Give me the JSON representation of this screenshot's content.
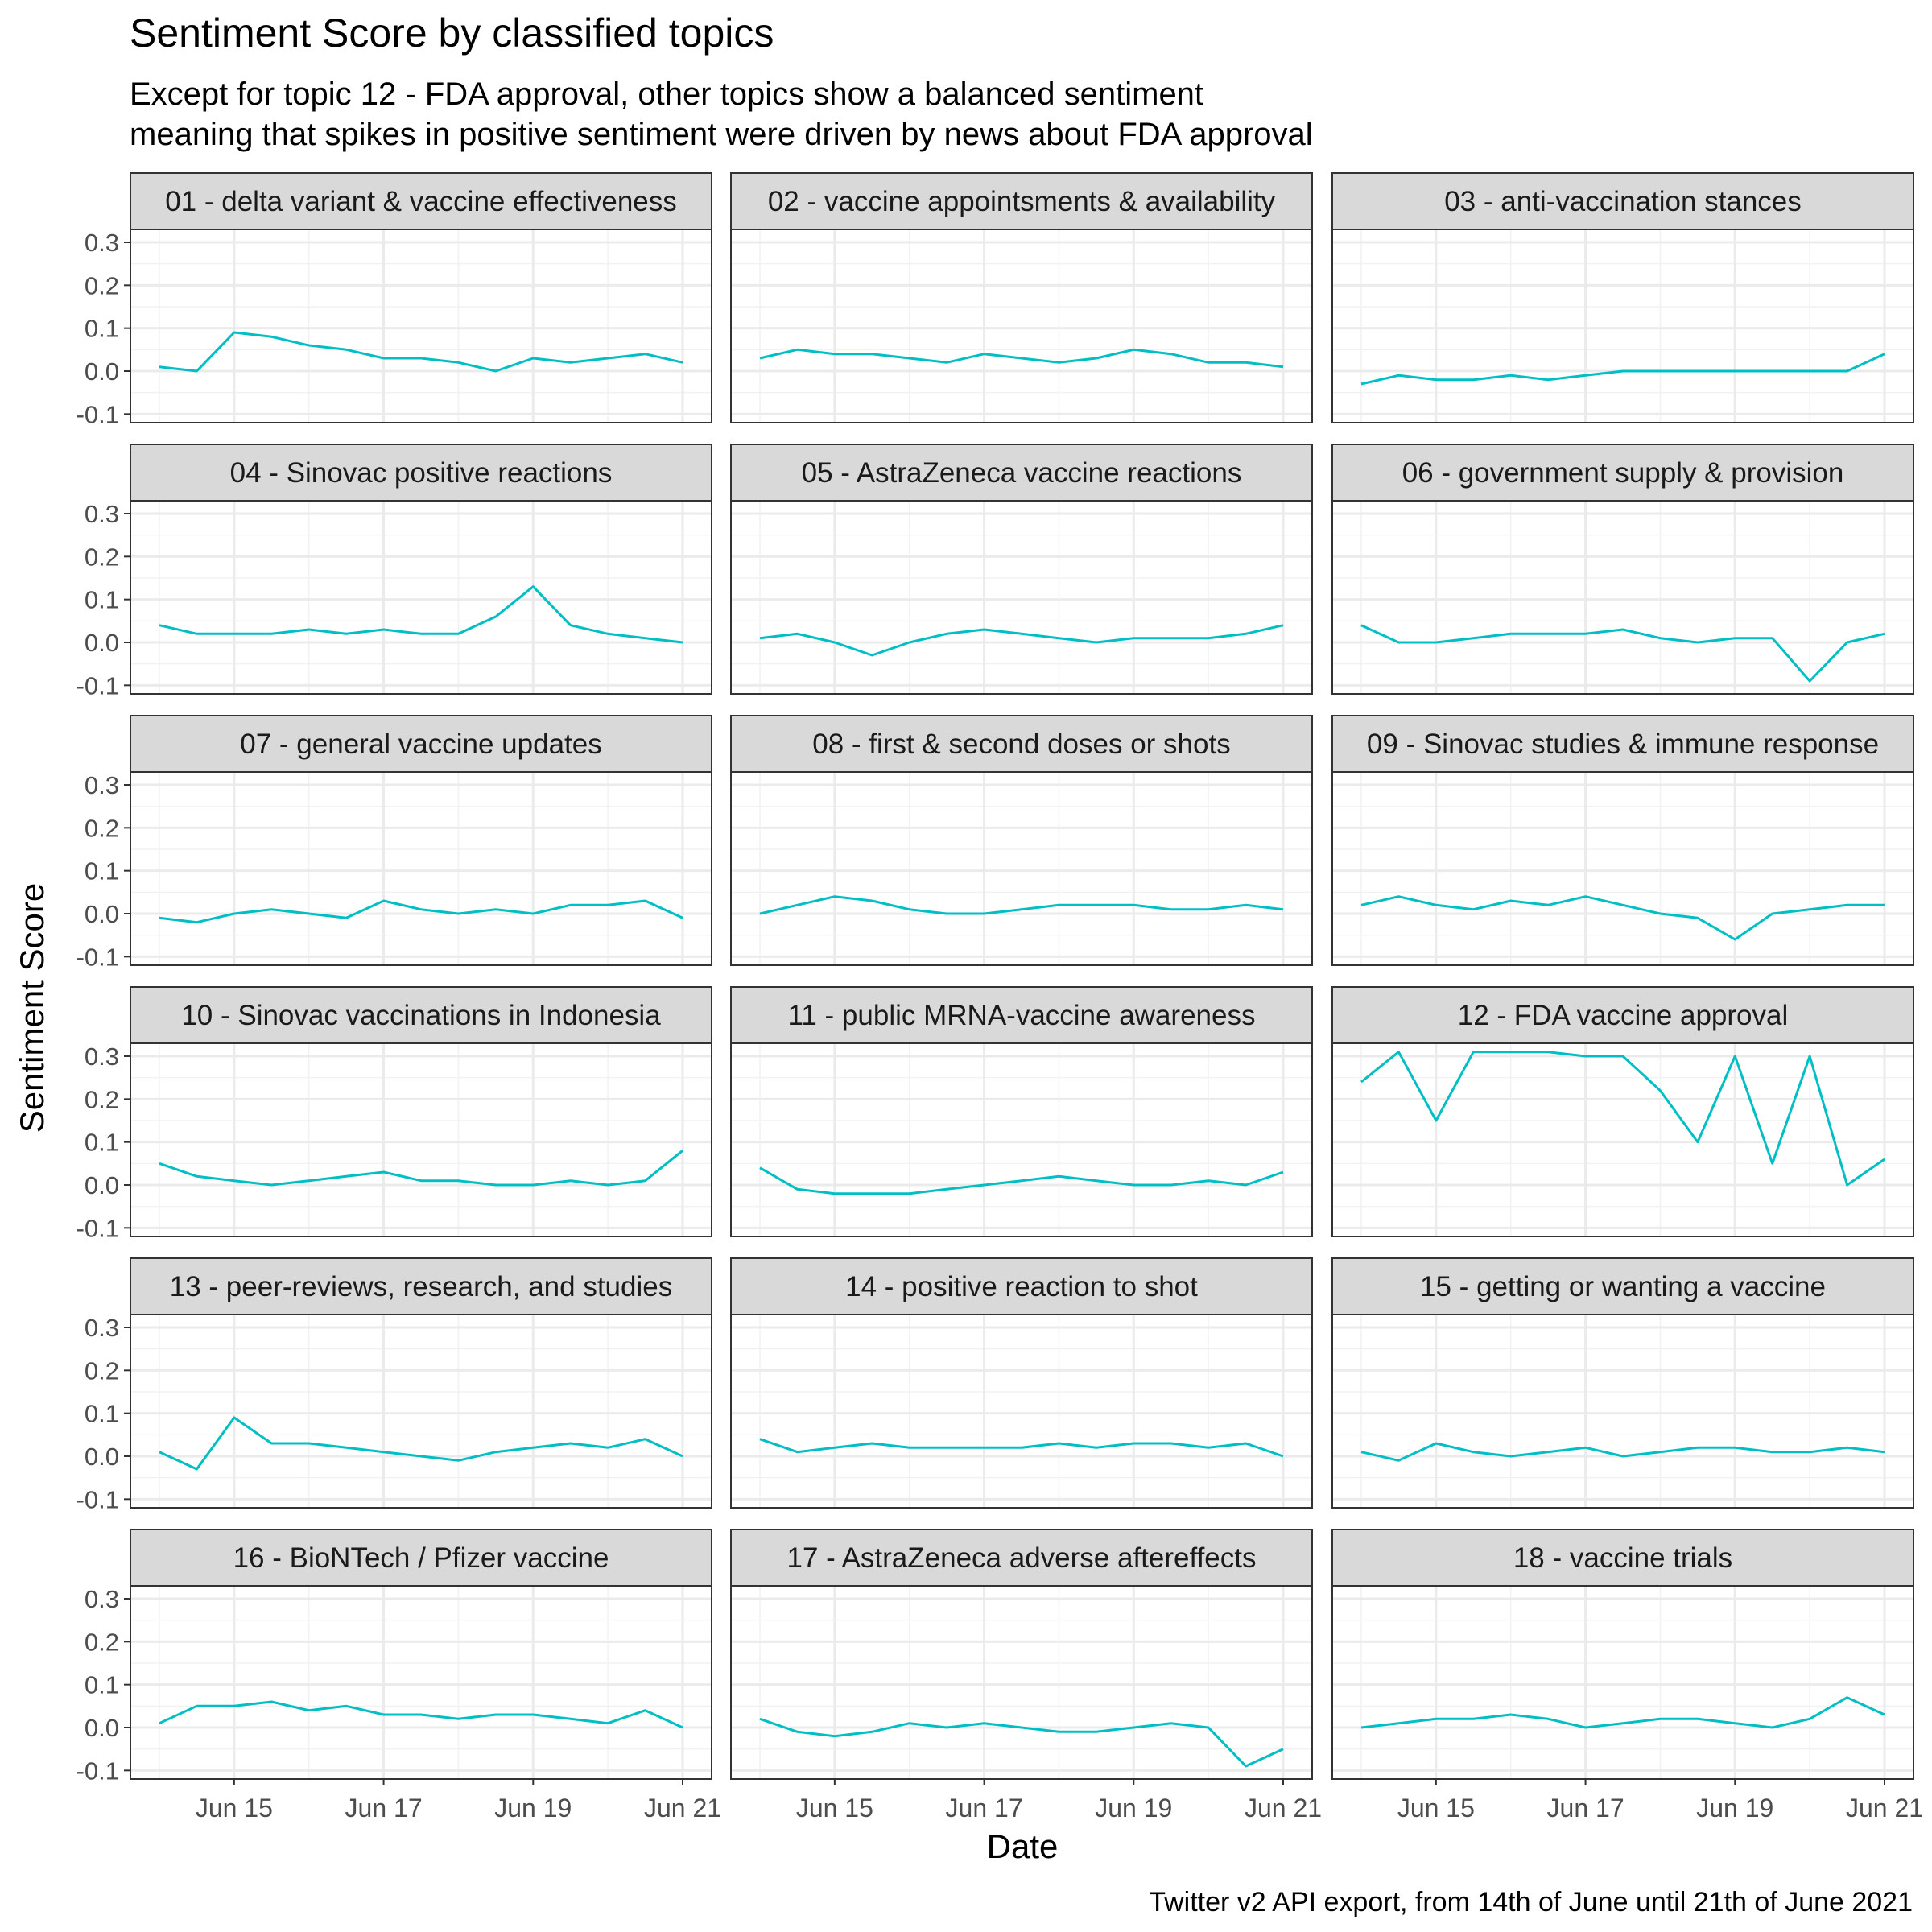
{
  "chart_data": {
    "type": "line",
    "title": "Sentiment Score by classified topics",
    "subtitle_lines": [
      "Except for topic 12 - FDA approval, other topics show a balanced sentiment",
      "meaning that spikes in positive sentiment were driven by news about FDA approval"
    ],
    "xlabel": "Date",
    "ylabel": "Sentiment Score",
    "caption": "Twitter v2 API export, from 14th of June until 21th of June 2021",
    "x_range": [
      "2021-06-14",
      "2021-06-21"
    ],
    "x_ticks": [
      {
        "date": "2021-06-15",
        "label": "Jun 15"
      },
      {
        "date": "2021-06-17",
        "label": "Jun 17"
      },
      {
        "date": "2021-06-19",
        "label": "Jun 19"
      },
      {
        "date": "2021-06-21",
        "label": "Jun 21"
      }
    ],
    "y_ticks": [
      -0.1,
      0.0,
      0.1,
      0.2,
      0.3
    ],
    "y_tick_labels": [
      "-0.1",
      "0.0",
      "0.1",
      "0.2",
      "0.3"
    ],
    "ylim": [
      -0.12,
      0.33
    ],
    "grid": true,
    "line_color": "#00BFC4",
    "panels": [
      {
        "label": "01 - delta variant & vaccine effectiveness",
        "x": [
          "2021-06-14",
          "2021-06-14 12:00",
          "2021-06-15",
          "2021-06-15 12:00",
          "2021-06-16",
          "2021-06-16 12:00",
          "2021-06-17",
          "2021-06-17 12:00",
          "2021-06-18",
          "2021-06-18 12:00",
          "2021-06-19",
          "2021-06-19 12:00",
          "2021-06-20",
          "2021-06-20 12:00",
          "2021-06-21"
        ],
        "y": [
          0.01,
          0.0,
          0.09,
          0.08,
          0.06,
          0.05,
          0.03,
          0.03,
          0.02,
          0.0,
          0.03,
          0.02,
          0.03,
          0.04,
          0.02
        ]
      },
      {
        "label": "02 - vaccine appointsments & availability",
        "x": [
          "2021-06-14",
          "2021-06-14 12:00",
          "2021-06-15",
          "2021-06-15 12:00",
          "2021-06-16",
          "2021-06-16 12:00",
          "2021-06-17",
          "2021-06-17 12:00",
          "2021-06-18",
          "2021-06-18 12:00",
          "2021-06-19",
          "2021-06-19 12:00",
          "2021-06-20",
          "2021-06-20 12:00",
          "2021-06-21"
        ],
        "y": [
          0.03,
          0.05,
          0.04,
          0.04,
          0.03,
          0.02,
          0.04,
          0.03,
          0.02,
          0.03,
          0.05,
          0.04,
          0.02,
          0.02,
          0.01
        ]
      },
      {
        "label": "03 - anti-vaccination stances",
        "x": [
          "2021-06-14",
          "2021-06-14 12:00",
          "2021-06-15",
          "2021-06-15 12:00",
          "2021-06-16",
          "2021-06-16 12:00",
          "2021-06-17",
          "2021-06-17 12:00",
          "2021-06-18",
          "2021-06-18 12:00",
          "2021-06-19",
          "2021-06-19 12:00",
          "2021-06-20",
          "2021-06-20 12:00",
          "2021-06-21"
        ],
        "y": [
          -0.03,
          -0.01,
          -0.02,
          -0.02,
          -0.01,
          -0.02,
          -0.01,
          0.0,
          0.0,
          0.0,
          0.0,
          0.0,
          0.0,
          0.0,
          0.04
        ]
      },
      {
        "label": "04 - Sinovac positive reactions",
        "x": [
          "2021-06-14",
          "2021-06-14 12:00",
          "2021-06-15",
          "2021-06-15 12:00",
          "2021-06-16",
          "2021-06-16 12:00",
          "2021-06-17",
          "2021-06-17 12:00",
          "2021-06-18",
          "2021-06-18 12:00",
          "2021-06-19",
          "2021-06-19 12:00",
          "2021-06-20",
          "2021-06-20 12:00",
          "2021-06-21"
        ],
        "y": [
          0.04,
          0.02,
          0.02,
          0.02,
          0.03,
          0.02,
          0.03,
          0.02,
          0.02,
          0.06,
          0.13,
          0.04,
          0.02,
          0.01,
          0.0
        ]
      },
      {
        "label": "05 - AstraZeneca vaccine reactions",
        "x": [
          "2021-06-14",
          "2021-06-14 12:00",
          "2021-06-15",
          "2021-06-15 12:00",
          "2021-06-16",
          "2021-06-16 12:00",
          "2021-06-17",
          "2021-06-17 12:00",
          "2021-06-18",
          "2021-06-18 12:00",
          "2021-06-19",
          "2021-06-19 12:00",
          "2021-06-20",
          "2021-06-20 12:00",
          "2021-06-21"
        ],
        "y": [
          0.01,
          0.02,
          0.0,
          -0.03,
          0.0,
          0.02,
          0.03,
          0.02,
          0.01,
          0.0,
          0.01,
          0.01,
          0.01,
          0.02,
          0.04
        ]
      },
      {
        "label": "06 - government supply & provision",
        "x": [
          "2021-06-14",
          "2021-06-14 12:00",
          "2021-06-15",
          "2021-06-15 12:00",
          "2021-06-16",
          "2021-06-16 12:00",
          "2021-06-17",
          "2021-06-17 12:00",
          "2021-06-18",
          "2021-06-18 12:00",
          "2021-06-19",
          "2021-06-19 12:00",
          "2021-06-20",
          "2021-06-20 12:00",
          "2021-06-21"
        ],
        "y": [
          0.04,
          0.0,
          0.0,
          0.01,
          0.02,
          0.02,
          0.02,
          0.03,
          0.01,
          0.0,
          0.01,
          0.01,
          -0.09,
          0.0,
          0.02
        ]
      },
      {
        "label": "07 - general vaccine updates",
        "x": [
          "2021-06-14",
          "2021-06-14 12:00",
          "2021-06-15",
          "2021-06-15 12:00",
          "2021-06-16",
          "2021-06-16 12:00",
          "2021-06-17",
          "2021-06-17 12:00",
          "2021-06-18",
          "2021-06-18 12:00",
          "2021-06-19",
          "2021-06-19 12:00",
          "2021-06-20",
          "2021-06-20 12:00",
          "2021-06-21"
        ],
        "y": [
          -0.01,
          -0.02,
          0.0,
          0.01,
          0.0,
          -0.01,
          0.03,
          0.01,
          0.0,
          0.01,
          0.0,
          0.02,
          0.02,
          0.03,
          -0.01
        ]
      },
      {
        "label": "08 - first & second doses or shots",
        "x": [
          "2021-06-14",
          "2021-06-14 12:00",
          "2021-06-15",
          "2021-06-15 12:00",
          "2021-06-16",
          "2021-06-16 12:00",
          "2021-06-17",
          "2021-06-17 12:00",
          "2021-06-18",
          "2021-06-18 12:00",
          "2021-06-19",
          "2021-06-19 12:00",
          "2021-06-20",
          "2021-06-20 12:00",
          "2021-06-21"
        ],
        "y": [
          0.0,
          0.02,
          0.04,
          0.03,
          0.01,
          0.0,
          0.0,
          0.01,
          0.02,
          0.02,
          0.02,
          0.01,
          0.01,
          0.02,
          0.01
        ]
      },
      {
        "label": "09 - Sinovac studies & immune response",
        "x": [
          "2021-06-14",
          "2021-06-14 12:00",
          "2021-06-15",
          "2021-06-15 12:00",
          "2021-06-16",
          "2021-06-16 12:00",
          "2021-06-17",
          "2021-06-17 12:00",
          "2021-06-18",
          "2021-06-18 12:00",
          "2021-06-19",
          "2021-06-19 12:00",
          "2021-06-20",
          "2021-06-20 12:00",
          "2021-06-21"
        ],
        "y": [
          0.02,
          0.04,
          0.02,
          0.01,
          0.03,
          0.02,
          0.04,
          0.02,
          0.0,
          -0.01,
          -0.06,
          0.0,
          0.01,
          0.02,
          0.02
        ]
      },
      {
        "label": "10 - Sinovac vaccinations in Indonesia",
        "x": [
          "2021-06-14",
          "2021-06-14 12:00",
          "2021-06-15",
          "2021-06-15 12:00",
          "2021-06-16",
          "2021-06-16 12:00",
          "2021-06-17",
          "2021-06-17 12:00",
          "2021-06-18",
          "2021-06-18 12:00",
          "2021-06-19",
          "2021-06-19 12:00",
          "2021-06-20",
          "2021-06-20 12:00",
          "2021-06-21"
        ],
        "y": [
          0.05,
          0.02,
          0.01,
          0.0,
          0.01,
          0.02,
          0.03,
          0.01,
          0.01,
          0.0,
          0.0,
          0.01,
          0.0,
          0.01,
          0.08
        ]
      },
      {
        "label": "11 - public MRNA-vaccine awareness",
        "x": [
          "2021-06-14",
          "2021-06-14 12:00",
          "2021-06-15",
          "2021-06-15 12:00",
          "2021-06-16",
          "2021-06-16 12:00",
          "2021-06-17",
          "2021-06-17 12:00",
          "2021-06-18",
          "2021-06-18 12:00",
          "2021-06-19",
          "2021-06-19 12:00",
          "2021-06-20",
          "2021-06-20 12:00",
          "2021-06-21"
        ],
        "y": [
          0.04,
          -0.01,
          -0.02,
          -0.02,
          -0.02,
          -0.01,
          0.0,
          0.01,
          0.02,
          0.01,
          0.0,
          0.0,
          0.01,
          0.0,
          0.03
        ]
      },
      {
        "label": "12 - FDA vaccine approval",
        "x": [
          "2021-06-14",
          "2021-06-14 12:00",
          "2021-06-15",
          "2021-06-15 12:00",
          "2021-06-16",
          "2021-06-16 12:00",
          "2021-06-17",
          "2021-06-17 12:00",
          "2021-06-18",
          "2021-06-18 12:00",
          "2021-06-19",
          "2021-06-19 12:00",
          "2021-06-20",
          "2021-06-20 12:00",
          "2021-06-21"
        ],
        "y": [
          0.24,
          0.31,
          0.15,
          0.31,
          0.31,
          0.31,
          0.3,
          0.3,
          0.22,
          0.1,
          0.3,
          0.05,
          0.3,
          0.0,
          0.06
        ]
      },
      {
        "label": "13 - peer-reviews, research, and studies",
        "x": [
          "2021-06-14",
          "2021-06-14 12:00",
          "2021-06-15",
          "2021-06-15 12:00",
          "2021-06-16",
          "2021-06-16 12:00",
          "2021-06-17",
          "2021-06-17 12:00",
          "2021-06-18",
          "2021-06-18 12:00",
          "2021-06-19",
          "2021-06-19 12:00",
          "2021-06-20",
          "2021-06-20 12:00",
          "2021-06-21"
        ],
        "y": [
          0.01,
          -0.03,
          0.09,
          0.03,
          0.03,
          0.02,
          0.01,
          0.0,
          -0.01,
          0.01,
          0.02,
          0.03,
          0.02,
          0.04,
          0.0
        ]
      },
      {
        "label": "14 - positive reaction to shot",
        "x": [
          "2021-06-14",
          "2021-06-14 12:00",
          "2021-06-15",
          "2021-06-15 12:00",
          "2021-06-16",
          "2021-06-16 12:00",
          "2021-06-17",
          "2021-06-17 12:00",
          "2021-06-18",
          "2021-06-18 12:00",
          "2021-06-19",
          "2021-06-19 12:00",
          "2021-06-20",
          "2021-06-20 12:00",
          "2021-06-21"
        ],
        "y": [
          0.04,
          0.01,
          0.02,
          0.03,
          0.02,
          0.02,
          0.02,
          0.02,
          0.03,
          0.02,
          0.03,
          0.03,
          0.02,
          0.03,
          0.0
        ]
      },
      {
        "label": "15 - getting or wanting a vaccine",
        "x": [
          "2021-06-14",
          "2021-06-14 12:00",
          "2021-06-15",
          "2021-06-15 12:00",
          "2021-06-16",
          "2021-06-16 12:00",
          "2021-06-17",
          "2021-06-17 12:00",
          "2021-06-18",
          "2021-06-18 12:00",
          "2021-06-19",
          "2021-06-19 12:00",
          "2021-06-20",
          "2021-06-20 12:00",
          "2021-06-21"
        ],
        "y": [
          0.01,
          -0.01,
          0.03,
          0.01,
          0.0,
          0.01,
          0.02,
          0.0,
          0.01,
          0.02,
          0.02,
          0.01,
          0.01,
          0.02,
          0.01
        ]
      },
      {
        "label": "16 - BioNTech / Pfizer vaccine",
        "x": [
          "2021-06-14",
          "2021-06-14 12:00",
          "2021-06-15",
          "2021-06-15 12:00",
          "2021-06-16",
          "2021-06-16 12:00",
          "2021-06-17",
          "2021-06-17 12:00",
          "2021-06-18",
          "2021-06-18 12:00",
          "2021-06-19",
          "2021-06-19 12:00",
          "2021-06-20",
          "2021-06-20 12:00",
          "2021-06-21"
        ],
        "y": [
          0.01,
          0.05,
          0.05,
          0.06,
          0.04,
          0.05,
          0.03,
          0.03,
          0.02,
          0.03,
          0.03,
          0.02,
          0.01,
          0.04,
          0.0
        ]
      },
      {
        "label": "17 - AstraZeneca adverse aftereffects",
        "x": [
          "2021-06-14",
          "2021-06-14 12:00",
          "2021-06-15",
          "2021-06-15 12:00",
          "2021-06-16",
          "2021-06-16 12:00",
          "2021-06-17",
          "2021-06-17 12:00",
          "2021-06-18",
          "2021-06-18 12:00",
          "2021-06-19",
          "2021-06-19 12:00",
          "2021-06-20",
          "2021-06-20 12:00",
          "2021-06-21"
        ],
        "y": [
          0.02,
          -0.01,
          -0.02,
          -0.01,
          0.01,
          0.0,
          0.01,
          0.0,
          -0.01,
          -0.01,
          0.0,
          0.01,
          0.0,
          -0.09,
          -0.05
        ]
      },
      {
        "label": "18 - vaccine trials",
        "x": [
          "2021-06-14",
          "2021-06-14 12:00",
          "2021-06-15",
          "2021-06-15 12:00",
          "2021-06-16",
          "2021-06-16 12:00",
          "2021-06-17",
          "2021-06-17 12:00",
          "2021-06-18",
          "2021-06-18 12:00",
          "2021-06-19",
          "2021-06-19 12:00",
          "2021-06-20",
          "2021-06-20 12:00",
          "2021-06-21"
        ],
        "y": [
          0.0,
          0.01,
          0.02,
          0.02,
          0.03,
          0.02,
          0.0,
          0.01,
          0.02,
          0.02,
          0.01,
          0.0,
          0.02,
          0.07,
          0.03
        ]
      }
    ]
  }
}
